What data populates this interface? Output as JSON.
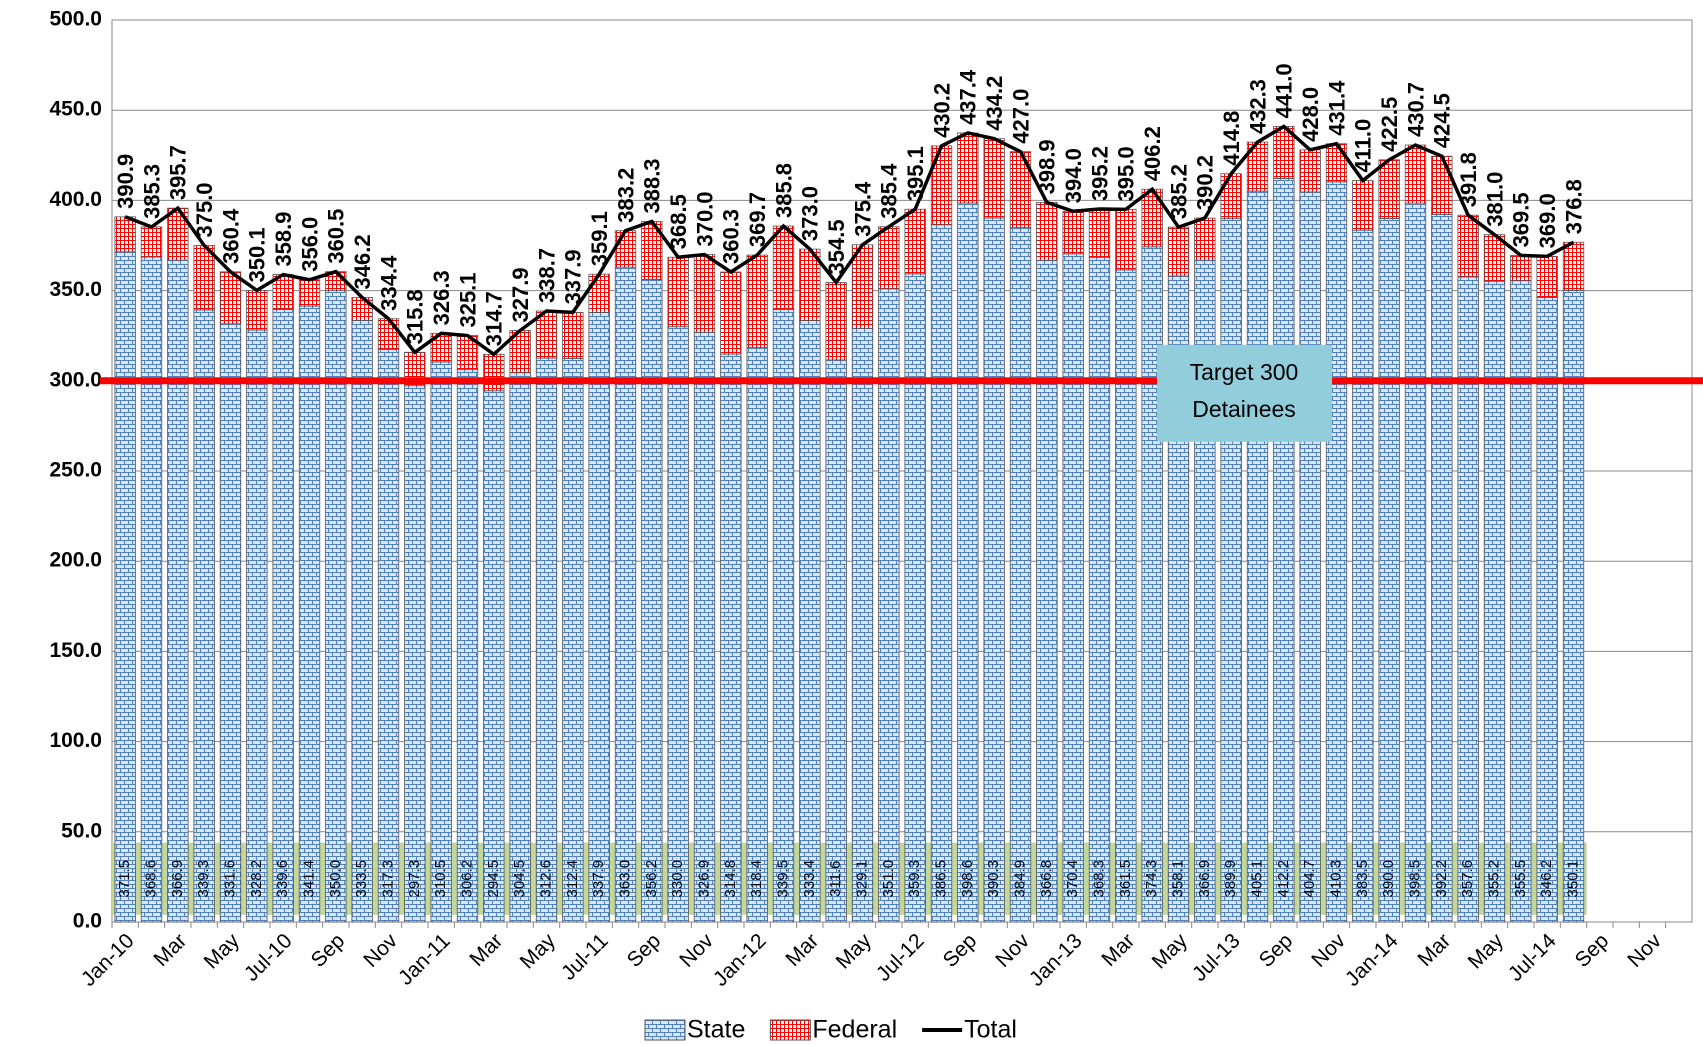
{
  "chart_data": {
    "type": "bar",
    "stacked": true,
    "categories": [
      "Jan-10",
      null,
      "Mar",
      null,
      "May",
      null,
      "Jul-10",
      null,
      "Sep",
      null,
      "Nov",
      null,
      "Jan-11",
      null,
      "Mar",
      null,
      "May",
      null,
      "Jul-11",
      null,
      "Sep",
      null,
      "Nov",
      null,
      "Jan-12",
      null,
      "Mar",
      null,
      "May",
      null,
      "Jul-12",
      null,
      "Sep",
      null,
      "Nov",
      null,
      "Jan-13",
      null,
      "Mar",
      null,
      "May",
      null,
      "Jul-13",
      null,
      "Sep",
      null,
      "Nov",
      null,
      "Jan-14",
      null,
      "Mar",
      null,
      "May",
      null,
      "Jul-14",
      null,
      "Sep",
      null,
      "Nov",
      null
    ],
    "series": [
      {
        "name": "State",
        "color": "#4f81bd",
        "values": [
          371.5,
          368.6,
          366.9,
          339.3,
          331.6,
          328.2,
          339.6,
          341.4,
          350.0,
          333.5,
          317.3,
          297.3,
          310.5,
          306.2,
          294.5,
          304.5,
          312.6,
          312.4,
          337.9,
          363.0,
          356.2,
          330.0,
          326.9,
          314.8,
          318.4,
          339.5,
          333.4,
          311.6,
          329.1,
          351.0,
          359.3,
          386.5,
          398.6,
          390.3,
          384.9,
          366.8,
          370.4,
          368.3,
          361.5,
          374.3,
          358.1,
          366.9,
          389.9,
          405.1,
          412.2,
          404.7,
          410.3,
          383.5,
          390.0,
          398.5,
          392.2,
          357.6,
          355.2,
          355.5,
          346.2,
          350.1,
          null,
          null,
          null,
          null
        ],
        "value_labels": [
          "371.5",
          "368.6",
          "366.9",
          "339.3",
          "331.6",
          "328.2",
          "339.6",
          "341.4",
          "350.0",
          "333.5",
          "317.3",
          "297.3",
          "310.5",
          "306.2",
          "294.5",
          "304.5",
          "312.6",
          "312.4",
          "337.9",
          "363.0",
          "356.2",
          "330.0",
          "326.9",
          "314.8",
          "318.4",
          "339.5",
          "333.4",
          "311.6",
          "329.1",
          "351.0",
          "359.3",
          "386.5",
          "398.6",
          "390.3",
          "384.9",
          "366.8",
          "370.4",
          "368.3",
          "361.5",
          "374.3",
          "358.1",
          "366.9",
          "389.9",
          "405.1",
          "412.2",
          "404.7",
          "410.3",
          "383.5",
          "390.0",
          "398.5",
          "392.2",
          "357.6",
          "355.2",
          "355.5",
          "346.2",
          "350.1",
          null,
          null,
          null,
          null
        ]
      },
      {
        "name": "Federal",
        "color": "#ff0000",
        "values": [
          19.4,
          16.7,
          28.8,
          35.7,
          28.8,
          21.9,
          19.3,
          14.6,
          10.5,
          12.7,
          17.1,
          18.5,
          15.8,
          18.9,
          20.2,
          23.4,
          26.1,
          25.5,
          21.2,
          20.2,
          32.1,
          38.5,
          43.1,
          45.5,
          51.3,
          46.3,
          39.6,
          42.9,
          46.3,
          34.4,
          35.8,
          43.7,
          38.8,
          43.9,
          42.1,
          32.1,
          23.6,
          26.9,
          33.5,
          31.9,
          27.1,
          23.3,
          24.9,
          27.2,
          28.8,
          23.3,
          21.1,
          27.5,
          32.5,
          32.2,
          32.3,
          34.2,
          25.8,
          14.0,
          22.8,
          26.7,
          null,
          null,
          null,
          null
        ]
      },
      {
        "name": "Total",
        "color": "#000000",
        "type": "line",
        "values": [
          390.9,
          385.3,
          395.7,
          375.0,
          360.4,
          350.1,
          358.9,
          356.0,
          360.5,
          346.2,
          334.4,
          315.8,
          326.3,
          325.1,
          314.7,
          327.9,
          338.7,
          337.9,
          359.1,
          383.2,
          388.3,
          368.5,
          370.0,
          360.3,
          369.7,
          385.8,
          373.0,
          354.5,
          375.4,
          385.4,
          395.1,
          430.2,
          437.4,
          434.2,
          427.0,
          398.9,
          394.0,
          395.2,
          395.0,
          406.2,
          385.2,
          390.2,
          414.8,
          432.3,
          441.0,
          428.0,
          431.4,
          411.0,
          422.5,
          430.7,
          424.5,
          391.8,
          381.0,
          369.5,
          369.0,
          376.8,
          null,
          null,
          null,
          null
        ],
        "value_labels": [
          "390.9",
          "385.3",
          "395.7",
          "375.0",
          "360.4",
          "350.1",
          "358.9",
          "356.0",
          "360.5",
          "346.2",
          "334.4",
          "315.8",
          "326.3",
          "325.1",
          "314.7",
          "327.9",
          "338.7",
          "337.9",
          "359.1",
          "383.2",
          "388.3",
          "368.5",
          "370.0",
          "360.3",
          "369.7",
          "385.8",
          "373.0",
          "354.5",
          "375.4",
          "385.4",
          "395.1",
          "430.2",
          "437.4",
          "434.2",
          "427.0",
          "398.9",
          "394.0",
          "395.2",
          "395.0",
          "406.2",
          "385.2",
          "390.2",
          "414.8",
          "432.3",
          "441.0",
          "428.0",
          "431.4",
          "411.0",
          "422.5",
          "430.7",
          "424.5",
          "391.8",
          "381.0",
          "369.5",
          "369.0",
          "376.8",
          null,
          null,
          null,
          null
        ]
      }
    ],
    "ylim": [
      0,
      500
    ],
    "yticks": [
      {
        "value": 0,
        "label": "0.0"
      },
      {
        "value": 50,
        "label": "50.0"
      },
      {
        "value": 100,
        "label": "100.0"
      },
      {
        "value": 150,
        "label": "150.0"
      },
      {
        "value": 200,
        "label": "200.0"
      },
      {
        "value": 250,
        "label": "250.0"
      },
      {
        "value": 300,
        "label": "300.0"
      },
      {
        "value": 350,
        "label": "350.0"
      },
      {
        "value": 400,
        "label": "400.0"
      },
      {
        "value": 450,
        "label": "450.0"
      },
      {
        "value": 500,
        "label": "500.0"
      }
    ],
    "grid": true,
    "target": {
      "value": 300,
      "color": "#ff0000",
      "label_lines": [
        "Target 300",
        "Detainees"
      ]
    },
    "legend": "bottom"
  }
}
